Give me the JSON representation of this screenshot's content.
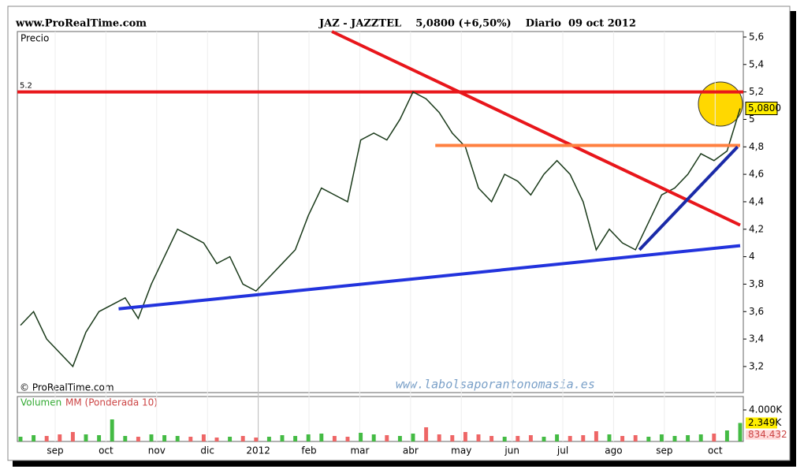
{
  "chart_data": {
    "type": "line",
    "site": "www.ProRealTime.com",
    "title": "JAZ - JAZZTEL    5,0800 (+6,50%)    Diario  09 oct 2012",
    "y_label": "Precio",
    "copyright": "© ProRealTime.com",
    "watermark": "www.labolsaporantonomasia.es",
    "months": [
      "sep",
      "oct",
      "nov",
      "dic",
      "2012",
      "feb",
      "mar",
      "abr",
      "may",
      "jun",
      "jul",
      "ago",
      "sep",
      "oct"
    ],
    "ylim": [
      3.01,
      5.64
    ],
    "yticks": [
      {
        "value": 3.2,
        "label": "3,2"
      },
      {
        "value": 3.4,
        "label": "3,4"
      },
      {
        "value": 3.6,
        "label": "3,6"
      },
      {
        "value": 3.8,
        "label": "3,8"
      },
      4,
      {
        "value": 4.2,
        "label": "4,2"
      },
      {
        "value": 4.4,
        "label": "4,4"
      },
      {
        "value": 4.6,
        "label": "4,6"
      },
      {
        "value": 4.8,
        "label": "4,8"
      },
      5,
      {
        "value": 5.2,
        "label": "5,2"
      },
      {
        "value": 5.4,
        "label": "5,4"
      },
      {
        "value": 5.6,
        "label": "5,6"
      }
    ],
    "series": [
      {
        "name": "Precio",
        "color": "#1a3a1a",
        "values": [
          3.5,
          3.6,
          3.4,
          3.3,
          3.2,
          3.45,
          3.6,
          3.65,
          3.7,
          3.55,
          3.8,
          4.0,
          4.2,
          4.15,
          4.1,
          3.95,
          4.0,
          3.8,
          3.75,
          3.85,
          3.95,
          4.05,
          4.3,
          4.5,
          4.45,
          4.4,
          4.85,
          4.9,
          4.85,
          5.0,
          5.2,
          5.15,
          5.05,
          4.9,
          4.8,
          4.5,
          4.4,
          4.6,
          4.55,
          4.45,
          4.6,
          4.7,
          4.6,
          4.4,
          4.05,
          4.2,
          4.1,
          4.05,
          4.25,
          4.45,
          4.5,
          4.6,
          4.75,
          4.7,
          4.77,
          5.08
        ],
        "last_label": "5,0800"
      }
    ],
    "level": {
      "value": 5.2,
      "label": "5.2",
      "color": "#e8161b"
    },
    "trendlines": [
      {
        "color": "#e8161b",
        "points": [
          [
            23.8,
            5.64
          ],
          [
            55,
            4.23
          ]
        ]
      },
      {
        "color": "#2233dd",
        "points": [
          [
            7.5,
            3.62
          ],
          [
            55,
            4.08
          ]
        ]
      },
      {
        "color": "#ff8040",
        "points": [
          [
            31.7,
            4.81
          ],
          [
            55,
            4.81
          ]
        ]
      },
      {
        "color": "#1a2aa8",
        "points": [
          [
            47.3,
            4.05
          ],
          [
            54.8,
            4.8
          ]
        ]
      }
    ],
    "volume": {
      "label": "Volumen",
      "mm_label": "MM (Ponderada 10)",
      "ylim": [
        0,
        5700
      ],
      "yticks": [
        {
          "value": 4000,
          "label": "4.000K"
        }
      ],
      "values": [
        600,
        800,
        700,
        900,
        1200,
        900,
        800,
        2800,
        700,
        600,
        900,
        800,
        700,
        600,
        900,
        500,
        600,
        700,
        500,
        600,
        800,
        700,
        900,
        1000,
        700,
        600,
        1100,
        900,
        800,
        700,
        1000,
        1800,
        900,
        800,
        1200,
        900,
        700,
        600,
        700,
        800,
        600,
        900,
        700,
        800,
        1300,
        900,
        700,
        800,
        600,
        900,
        700,
        800,
        900,
        1000,
        1400,
        2349
      ],
      "value_labels": {
        "55": "2.349K"
      },
      "mm": 834.432,
      "up_color": "#44bb44",
      "down_color": "#ee6666"
    }
  }
}
